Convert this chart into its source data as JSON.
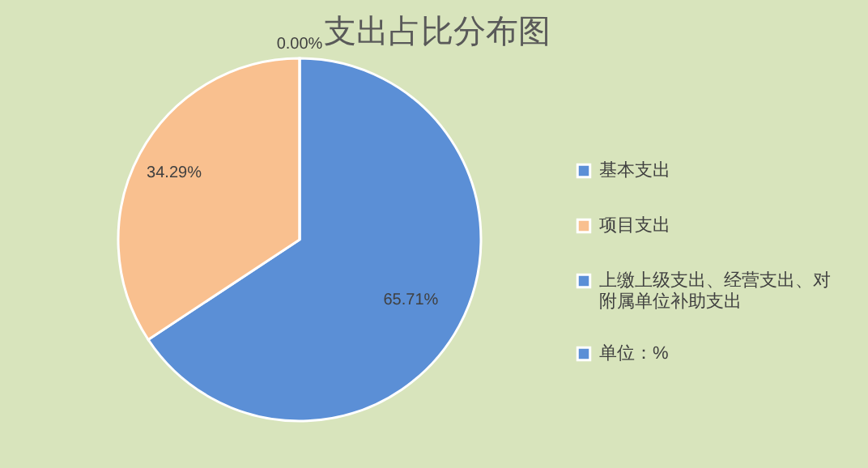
{
  "chart_data": {
    "type": "pie",
    "title": "支出占比分布图",
    "categories": [
      "基本支出",
      "项目支出",
      "上缴上级支出、经营支出、对附属单位补助支出",
      "单位：%"
    ],
    "values": [
      65.71,
      34.29,
      0,
      null
    ],
    "colors": [
      "#5b8fd6",
      "#f9c08f",
      "#5b8fd6",
      "#5b8fd6"
    ],
    "value_labels": [
      "65.71%",
      "34.29%",
      "0.00%",
      null
    ],
    "legend": "right"
  }
}
